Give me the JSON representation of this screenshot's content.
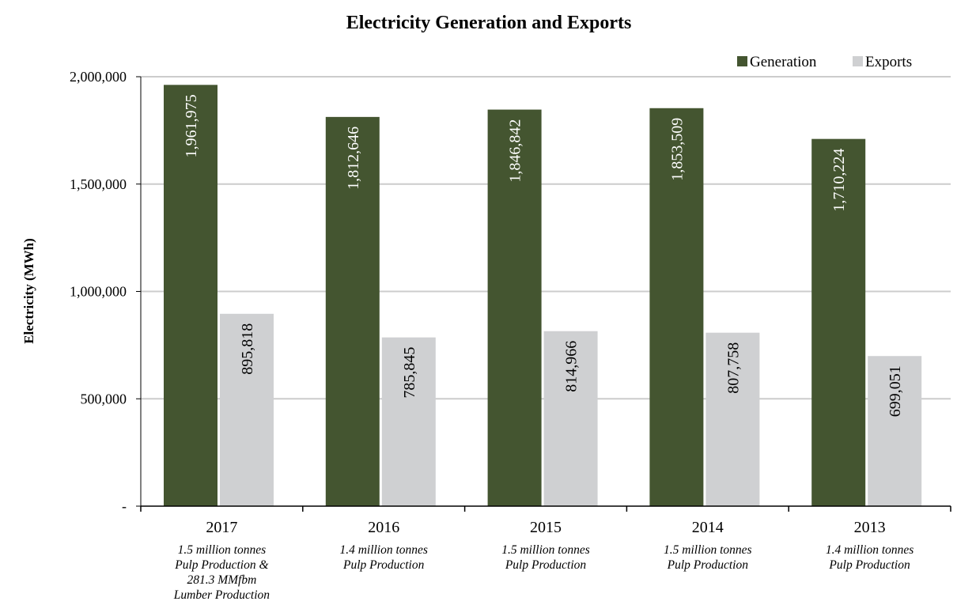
{
  "chart_data": {
    "type": "bar",
    "title": "Electricity Generation and Exports",
    "ylabel": "Electricity (MWh)",
    "xlabel": "",
    "ylim": [
      0,
      2000000
    ],
    "yticks": [
      0,
      500000,
      1000000,
      1500000,
      2000000
    ],
    "ytick_labels": [
      "-",
      "500,000",
      "1,000,000",
      "1,500,000",
      "2,000,000"
    ],
    "grid": true,
    "legend_position": "top-right",
    "categories": [
      "2017",
      "2016",
      "2015",
      "2014",
      "2013"
    ],
    "category_notes": [
      [
        "1.5 million tonnes",
        "Pulp Production &",
        "281.3 MMfbm",
        "Lumber Production"
      ],
      [
        "1.4 million tonnes",
        "Pulp Production"
      ],
      [
        "1.5 million tonnes",
        "Pulp Production"
      ],
      [
        "1.5 million tonnes",
        "Pulp Production"
      ],
      [
        "1.4 million tonnes",
        "Pulp Production"
      ]
    ],
    "series": [
      {
        "name": "Generation",
        "color": "#445530",
        "values": [
          1961975,
          1812646,
          1846842,
          1853509,
          1710224
        ],
        "labels": [
          "1,961,975",
          "1,812,646",
          "1,846,842",
          "1,853,509",
          "1,710,224"
        ],
        "label_color": "#ffffff"
      },
      {
        "name": "Exports",
        "color": "#cfd0d2",
        "values": [
          895818,
          785845,
          814966,
          807758,
          699051
        ],
        "labels": [
          "895,818",
          "785,845",
          "814,966",
          "807,758",
          "699,051"
        ],
        "label_color": "#000000"
      }
    ],
    "gridline_color": "#cccccc"
  }
}
